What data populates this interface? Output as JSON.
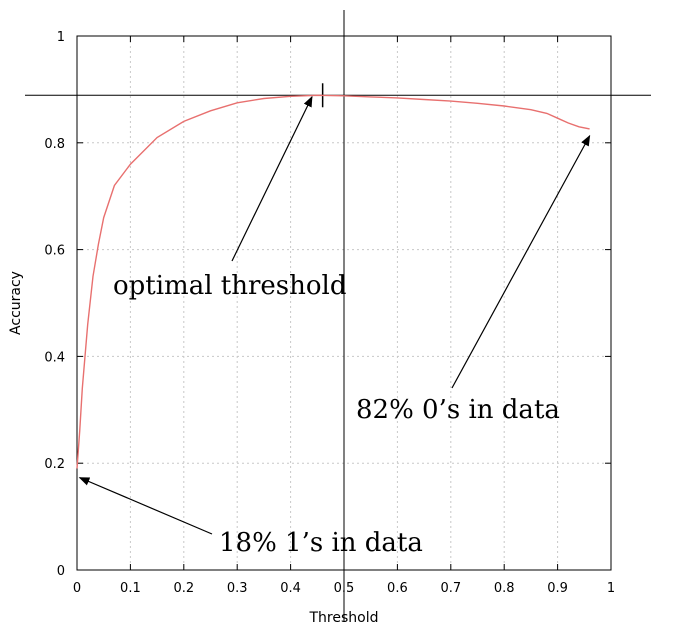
{
  "chart_data": {
    "type": "line",
    "xlabel": "Threshold",
    "ylabel": "Accuracy",
    "xlim": [
      0,
      1
    ],
    "ylim": [
      0,
      1
    ],
    "grid": true,
    "x_ticks": [
      0,
      0.1,
      0.2,
      0.3,
      0.4,
      0.5,
      0.6,
      0.7,
      0.8,
      0.9,
      1
    ],
    "y_ticks": [
      0,
      0.2,
      0.4,
      0.6,
      0.8,
      1
    ],
    "x_tick_labels": [
      "0",
      "0.1",
      "0.2",
      "0.3",
      "0.4",
      "0.5",
      "0.6",
      "0.7",
      "0.8",
      "0.9",
      "1"
    ],
    "y_tick_labels": [
      "0",
      "0.2",
      "0.4",
      "0.6",
      "0.8",
      "1"
    ],
    "series": [
      {
        "color": "#e8706f",
        "x": [
          0.0,
          0.005,
          0.01,
          0.02,
          0.03,
          0.04,
          0.05,
          0.07,
          0.1,
          0.15,
          0.2,
          0.25,
          0.3,
          0.35,
          0.4,
          0.45,
          0.5,
          0.55,
          0.6,
          0.65,
          0.7,
          0.75,
          0.8,
          0.85,
          0.88,
          0.9,
          0.92,
          0.94,
          0.96
        ],
        "y": [
          0.19,
          0.26,
          0.34,
          0.46,
          0.55,
          0.61,
          0.66,
          0.72,
          0.76,
          0.81,
          0.84,
          0.86,
          0.875,
          0.883,
          0.887,
          0.889,
          0.888,
          0.886,
          0.884,
          0.881,
          0.878,
          0.874,
          0.869,
          0.862,
          0.855,
          0.846,
          0.837,
          0.83,
          0.826
        ]
      }
    ],
    "reference_lines": {
      "horizontal_y": 0.889,
      "vertical_x": 0.5,
      "optimal_marker_x": 0.46
    },
    "annotations": [
      {
        "text": "optimal threshold",
        "arrow_to": [
          0.44,
          0.886
        ]
      },
      {
        "text": "82% 0’s in data",
        "arrow_to": [
          0.96,
          0.813
        ]
      },
      {
        "text": "18% 1’s in data",
        "arrow_to": [
          0.005,
          0.173
        ]
      }
    ]
  }
}
